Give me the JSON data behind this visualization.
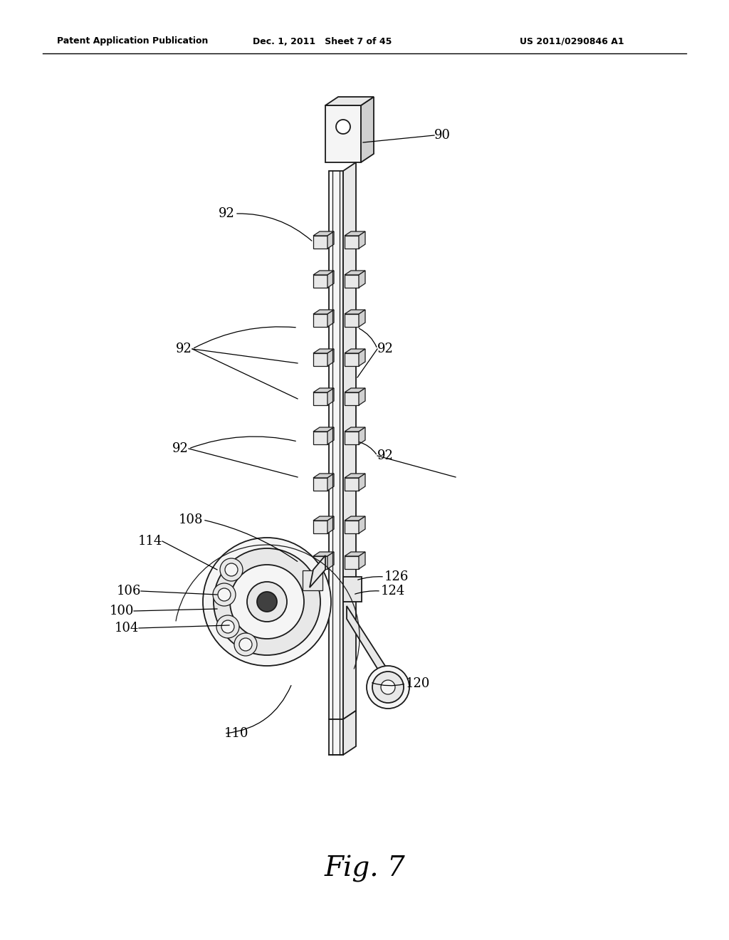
{
  "bg_color": "#ffffff",
  "header_left": "Patent Application Publication",
  "header_mid": "Dec. 1, 2011   Sheet 7 of 45",
  "header_right": "US 2011/0290846 A1",
  "fig_label": "Fig. 7",
  "line_color": "#1a1a1a",
  "face_light": "#f5f5f5",
  "face_mid": "#e8e8e8",
  "face_dark": "#d0d0d0",
  "face_darkest": "#404040"
}
